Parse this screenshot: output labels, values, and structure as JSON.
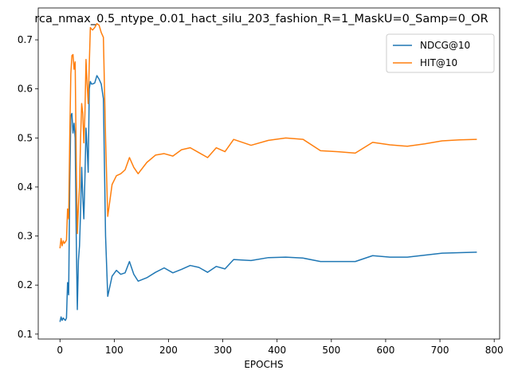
{
  "chart_data": {
    "type": "line",
    "title": "rca_nmax_0.5_ntype_0.01_hact_silu_203_fashion_R=1_MaskU=0_Samp=0_OR",
    "xlabel": "EPOCHS",
    "ylabel": "",
    "xlim": [
      -40,
      810
    ],
    "ylim": [
      0.09,
      0.765
    ],
    "xticks": [
      0,
      100,
      200,
      300,
      400,
      500,
      600,
      700,
      800
    ],
    "yticks": [
      0.1,
      0.2,
      0.3,
      0.4,
      0.5,
      0.6,
      0.7
    ],
    "ytick_labels": [
      "0.1",
      "0.2",
      "0.3",
      "0.4",
      "0.5",
      "0.6",
      "0.7"
    ],
    "grid": false,
    "legend_position": "top-right",
    "series": [
      {
        "name": "NDCG@10",
        "color": "#1f77b4",
        "points": [
          [
            0,
            0.125
          ],
          [
            2,
            0.135
          ],
          [
            4,
            0.128
          ],
          [
            6,
            0.133
          ],
          [
            8,
            0.13
          ],
          [
            10,
            0.128
          ],
          [
            12,
            0.133
          ],
          [
            14,
            0.205
          ],
          [
            16,
            0.18
          ],
          [
            18,
            0.4
          ],
          [
            20,
            0.545
          ],
          [
            22,
            0.55
          ],
          [
            24,
            0.51
          ],
          [
            26,
            0.53
          ],
          [
            28,
            0.5
          ],
          [
            30,
            0.3
          ],
          [
            32,
            0.15
          ],
          [
            34,
            0.25
          ],
          [
            36,
            0.28
          ],
          [
            38,
            0.35
          ],
          [
            40,
            0.44
          ],
          [
            42,
            0.38
          ],
          [
            44,
            0.335
          ],
          [
            46,
            0.42
          ],
          [
            48,
            0.52
          ],
          [
            50,
            0.48
          ],
          [
            52,
            0.43
          ],
          [
            54,
            0.6
          ],
          [
            56,
            0.615
          ],
          [
            58,
            0.61
          ],
          [
            60,
            0.61
          ],
          [
            64,
            0.612
          ],
          [
            68,
            0.627
          ],
          [
            72,
            0.62
          ],
          [
            76,
            0.61
          ],
          [
            80,
            0.58
          ],
          [
            84,
            0.3
          ],
          [
            88,
            0.177
          ],
          [
            96,
            0.218
          ],
          [
            104,
            0.23
          ],
          [
            112,
            0.222
          ],
          [
            120,
            0.225
          ],
          [
            128,
            0.248
          ],
          [
            136,
            0.222
          ],
          [
            144,
            0.208
          ],
          [
            160,
            0.215
          ],
          [
            176,
            0.226
          ],
          [
            192,
            0.235
          ],
          [
            208,
            0.225
          ],
          [
            224,
            0.232
          ],
          [
            240,
            0.24
          ],
          [
            256,
            0.236
          ],
          [
            272,
            0.226
          ],
          [
            288,
            0.238
          ],
          [
            304,
            0.233
          ],
          [
            320,
            0.252
          ],
          [
            352,
            0.25
          ],
          [
            384,
            0.256
          ],
          [
            416,
            0.257
          ],
          [
            448,
            0.255
          ],
          [
            480,
            0.248
          ],
          [
            512,
            0.248
          ],
          [
            544,
            0.248
          ],
          [
            576,
            0.26
          ],
          [
            608,
            0.257
          ],
          [
            640,
            0.257
          ],
          [
            672,
            0.261
          ],
          [
            704,
            0.265
          ],
          [
            736,
            0.266
          ],
          [
            768,
            0.267
          ]
        ]
      },
      {
        "name": "HIT@10",
        "color": "#ff7f0e",
        "points": [
          [
            0,
            0.275
          ],
          [
            2,
            0.295
          ],
          [
            4,
            0.28
          ],
          [
            6,
            0.29
          ],
          [
            8,
            0.285
          ],
          [
            10,
            0.288
          ],
          [
            12,
            0.292
          ],
          [
            14,
            0.355
          ],
          [
            16,
            0.335
          ],
          [
            18,
            0.5
          ],
          [
            20,
            0.63
          ],
          [
            22,
            0.668
          ],
          [
            24,
            0.67
          ],
          [
            26,
            0.64
          ],
          [
            28,
            0.655
          ],
          [
            30,
            0.45
          ],
          [
            32,
            0.305
          ],
          [
            34,
            0.36
          ],
          [
            36,
            0.4
          ],
          [
            38,
            0.5
          ],
          [
            40,
            0.57
          ],
          [
            42,
            0.55
          ],
          [
            44,
            0.49
          ],
          [
            46,
            0.55
          ],
          [
            48,
            0.66
          ],
          [
            50,
            0.61
          ],
          [
            52,
            0.57
          ],
          [
            54,
            0.65
          ],
          [
            56,
            0.725
          ],
          [
            58,
            0.722
          ],
          [
            60,
            0.72
          ],
          [
            64,
            0.725
          ],
          [
            68,
            0.733
          ],
          [
            72,
            0.73
          ],
          [
            76,
            0.715
          ],
          [
            80,
            0.705
          ],
          [
            84,
            0.5
          ],
          [
            88,
            0.34
          ],
          [
            96,
            0.405
          ],
          [
            104,
            0.423
          ],
          [
            112,
            0.427
          ],
          [
            120,
            0.435
          ],
          [
            128,
            0.46
          ],
          [
            136,
            0.44
          ],
          [
            144,
            0.427
          ],
          [
            160,
            0.45
          ],
          [
            176,
            0.465
          ],
          [
            192,
            0.468
          ],
          [
            208,
            0.463
          ],
          [
            224,
            0.476
          ],
          [
            240,
            0.48
          ],
          [
            256,
            0.47
          ],
          [
            272,
            0.46
          ],
          [
            288,
            0.48
          ],
          [
            304,
            0.472
          ],
          [
            320,
            0.497
          ],
          [
            352,
            0.485
          ],
          [
            384,
            0.495
          ],
          [
            416,
            0.5
          ],
          [
            448,
            0.497
          ],
          [
            480,
            0.474
          ],
          [
            512,
            0.472
          ],
          [
            544,
            0.469
          ],
          [
            576,
            0.491
          ],
          [
            608,
            0.486
          ],
          [
            640,
            0.483
          ],
          [
            672,
            0.488
          ],
          [
            704,
            0.494
          ],
          [
            736,
            0.496
          ],
          [
            768,
            0.497
          ]
        ]
      }
    ]
  }
}
